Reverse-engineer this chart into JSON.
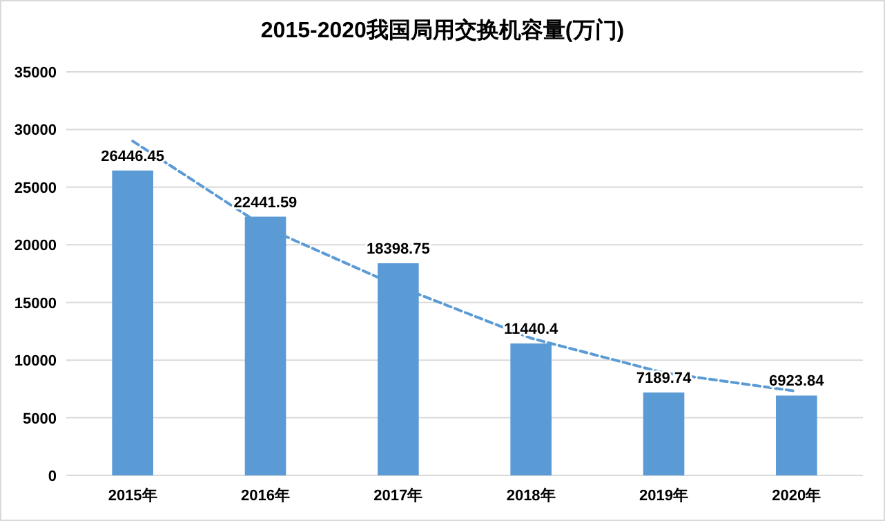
{
  "chart_data": {
    "type": "bar",
    "title": "2015-2020我国局用交换机容量(万门)",
    "categories": [
      "2015年",
      "2016年",
      "2017年",
      "2018年",
      "2019年",
      "2020年"
    ],
    "series": [
      {
        "color": "#5b9bd5",
        "values": [
          26446.45,
          22441.59,
          18398.75,
          11440.4,
          7189.74,
          6923.84
        ],
        "value_labels": [
          "26446.45",
          "22441.59",
          "18398.75",
          "11440.4",
          "7189.74",
          "6923.84"
        ]
      },
      {
        "type": "line",
        "color": "#5b9bd5",
        "line_style": "dashed",
        "marker": "none",
        "x": [
          "2015年",
          "2016年",
          "2017年",
          "2018年",
          "2019年",
          "2020年"
        ],
        "values": [
          29000,
          21500,
          16400,
          11900,
          8900,
          7300
        ]
      }
    ],
    "ylim": [
      0,
      35000
    ],
    "yticks": [
      0,
      5000,
      10000,
      15000,
      20000,
      25000,
      30000,
      35000
    ],
    "grid": "y"
  }
}
